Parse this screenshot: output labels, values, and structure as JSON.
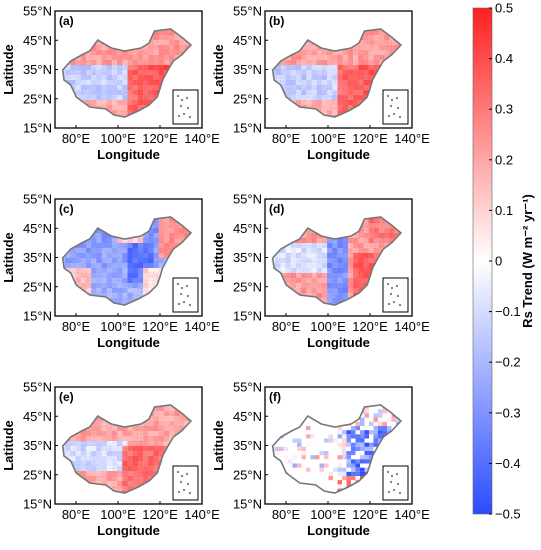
{
  "chart_data": {
    "type": "heatmap",
    "panels": [
      {
        "label": "(a)",
        "pattern": "north_pos_west_neg_east_strong_pos"
      },
      {
        "label": "(b)",
        "pattern": "north_pos_west_neg_east_strong_pos"
      },
      {
        "label": "(c)",
        "pattern": "mostly_negative_northeast_pos"
      },
      {
        "label": "(d)",
        "pattern": "central_neg_east_pos"
      },
      {
        "label": "(e)",
        "pattern": "mostly_positive_west_neg"
      },
      {
        "label": "(f)",
        "pattern": "sparse_stations_east_negative"
      }
    ],
    "xlabel": "Longitude",
    "ylabel": "Latitude",
    "xticks": [
      "80°E",
      "100°E",
      "120°E",
      "140°E"
    ],
    "yticks": [
      "55°N",
      "45°N",
      "35°N",
      "25°N",
      "15°N"
    ],
    "xlim": [
      70,
      140
    ],
    "ylim": [
      15,
      55
    ],
    "colorbar": {
      "label": "Rs Trend (W m⁻² yr⁻¹)",
      "ticks": [
        "0.5",
        "0.4",
        "0.3",
        "0.2",
        "0.1",
        "0",
        "−0.1",
        "−0.2",
        "−0.3",
        "−0.4",
        "−0.5"
      ],
      "range": [
        -0.5,
        0.5
      ],
      "colors": {
        "low": "#2b4cff",
        "mid": "#ffffff",
        "high": "#ff2020"
      }
    }
  }
}
